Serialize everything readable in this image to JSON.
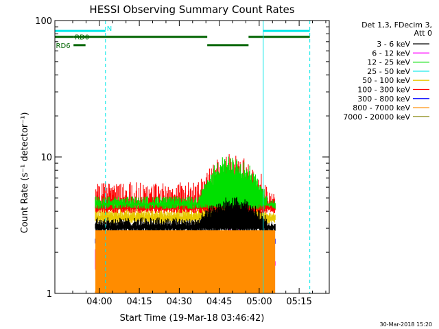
{
  "chart_data": {
    "type": "line",
    "title": "HESSI Observing Summary Count Rates",
    "xlabel": "Start Time (19-Mar-18 03:46:42)",
    "ylabel": "Count Rate (s⁻¹ detector⁻¹)",
    "y_scale": "log",
    "ylim": [
      1,
      100
    ],
    "xlim_minutes": [
      -16.7,
      86.3
    ],
    "x_tick_labels": [
      "04:00",
      "04:15",
      "04:30",
      "04:45",
      "05:00",
      "05:15"
    ],
    "x_tick_minutes": [
      0,
      15,
      30,
      45,
      60,
      75
    ],
    "y_tick_labels": [
      "1",
      "10",
      "100"
    ],
    "y_tick_values": [
      1,
      10,
      100
    ],
    "legend_header": [
      "Det 1,3, FDecim 3,",
      "Att 0"
    ],
    "legend_position": "right",
    "series": [
      {
        "name": "3 - 6 keV",
        "color": "#000000",
        "band": [
          3.0,
          6.9
        ],
        "base_min": 0.05,
        "base_max": 0.22,
        "peak_max": 0.45
      },
      {
        "name": "6 - 12 keV",
        "color": "#ff00ff",
        "band": [
          1.6,
          7.5
        ],
        "base_min": 0.05,
        "base_max": 0.18,
        "peak_max": 0.3
      },
      {
        "name": "12 - 25 keV",
        "color": "#00e000",
        "band": [
          4.5,
          17.5
        ],
        "base_min": 0.0,
        "base_max": 0.1,
        "peak_max": 0.55
      },
      {
        "name": "25 - 50 keV",
        "color": "#00e8e8",
        "band": [
          0,
          0
        ],
        "base_min": 0,
        "base_max": 0,
        "peak_max": 0
      },
      {
        "name": "50 - 100 keV",
        "color": "#e8c800",
        "band": [
          3.5,
          7.5
        ],
        "base_min": 0.05,
        "base_max": 0.25,
        "peak_max": 0.3
      },
      {
        "name": "100 - 300 keV",
        "color": "#ff0000",
        "band": [
          4.2,
          13.5
        ],
        "base_min": 0.0,
        "base_max": 0.38,
        "peak_max": 0.45
      },
      {
        "name": "300 - 800 keV",
        "color": "#0000ff",
        "band": [
          2.5,
          4.0
        ],
        "base_min": 0.0,
        "base_max": 0.02,
        "peak_max": 0.06
      },
      {
        "name": "800 - 7000 keV",
        "color": "#ff8c00",
        "band": [
          1.0,
          2.9
        ],
        "base_min": 0.0,
        "base_max": 0.05,
        "peak_max": 0.05
      },
      {
        "name": "7000 - 20000 keV",
        "color": "#808000",
        "band": [
          0,
          0
        ],
        "base_min": 0,
        "base_max": 0,
        "peak_max": 0
      }
    ],
    "data_x_range_minutes": [
      -1.5,
      66
    ],
    "flare_peak_minutes": 50,
    "flare_halfwidth_minutes": 13,
    "vertical_lines": [
      {
        "minute": 2.3,
        "color": "#00e8e8",
        "style": "dashed"
      },
      {
        "minute": -16.7,
        "color": "#00e8e8",
        "style": "solid"
      },
      {
        "minute": 61.5,
        "color": "#00e8e8",
        "style": "solid"
      },
      {
        "minute": 79,
        "color": "#00e8e8",
        "style": "dashed"
      }
    ],
    "flag_bars": [
      {
        "label": "N",
        "color": "#00e8e8",
        "segments": [
          [
            -16.7,
            2.3
          ],
          [
            61.5,
            79
          ]
        ],
        "level": 84
      },
      {
        "label": "RD0",
        "color": "#006400",
        "segments": [
          [
            -16.7,
            -9.7
          ],
          [
            -9.7,
            40.5
          ],
          [
            56,
            79
          ]
        ],
        "level": 76
      },
      {
        "label": "RD6",
        "color": "#006400",
        "segments": [
          [
            -9.7,
            -5.2
          ],
          [
            40.5,
            56
          ]
        ],
        "level": 66
      }
    ],
    "timestamp": "30-Mar-2018 15:20"
  }
}
